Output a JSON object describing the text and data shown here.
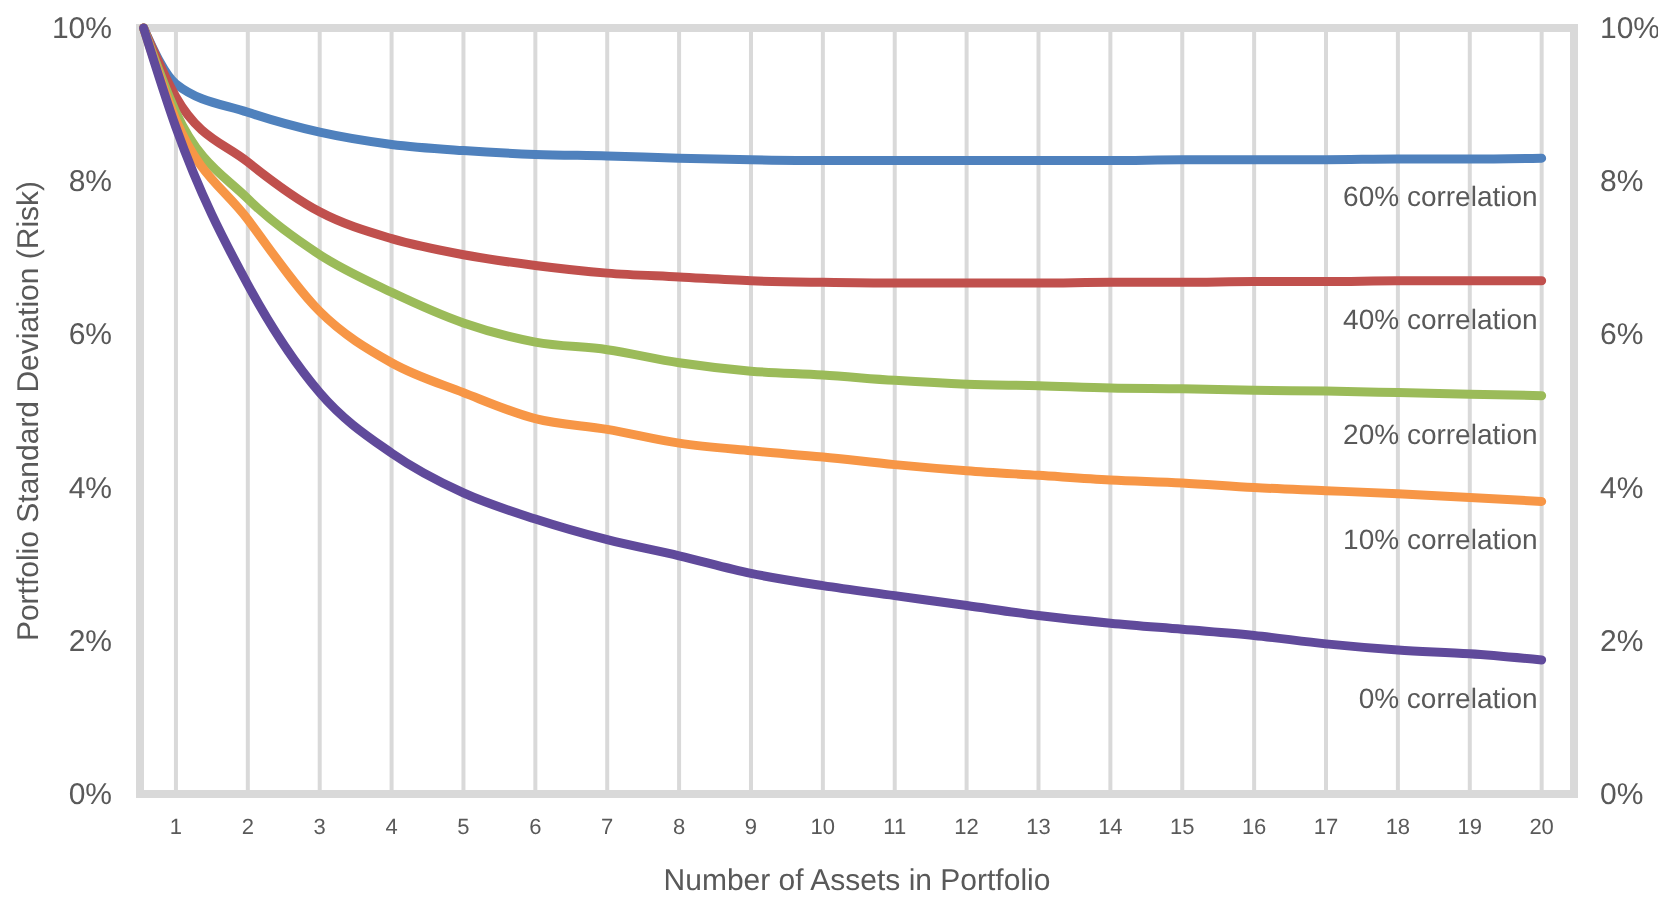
{
  "chart_data": {
    "type": "line",
    "xlabel": "Number of Assets in Portfolio",
    "ylabel": "Portfolio Standard Deviation (Risk)",
    "x": [
      0.55,
      1,
      2,
      3,
      4,
      5,
      6,
      7,
      8,
      9,
      10,
      11,
      12,
      13,
      14,
      15,
      16,
      17,
      18,
      19,
      20
    ],
    "xlim": [
      0.5,
      20.45
    ],
    "xticks": [
      1,
      2,
      3,
      4,
      5,
      6,
      7,
      8,
      9,
      10,
      11,
      12,
      13,
      14,
      15,
      16,
      17,
      18,
      19,
      20
    ],
    "ylim": [
      0,
      10
    ],
    "yticks": [
      {
        "value": 0,
        "label": "0%"
      },
      {
        "value": 2,
        "label": "2%"
      },
      {
        "value": 4,
        "label": "4%"
      },
      {
        "value": 6,
        "label": "6%"
      },
      {
        "value": 8,
        "label": "8%"
      },
      {
        "value": 10,
        "label": "10%"
      }
    ],
    "y2lim": [
      0,
      10
    ],
    "y2ticks": [
      {
        "value": 0,
        "label": "0%"
      },
      {
        "value": 2,
        "label": "2%"
      },
      {
        "value": 4,
        "label": "4%"
      },
      {
        "value": 6,
        "label": "6%"
      },
      {
        "value": 8,
        "label": "8%"
      },
      {
        "value": 10,
        "label": "10%"
      }
    ],
    "grid": "x",
    "legend": false,
    "marker": "none",
    "line_style": "solid",
    "series": [
      {
        "name": "60% correlation",
        "color": "#4f81bd",
        "values": [
          10,
          9.27,
          8.9,
          8.64,
          8.48,
          8.4,
          8.35,
          8.33,
          8.3,
          8.28,
          8.27,
          8.27,
          8.27,
          8.27,
          8.27,
          8.28,
          8.28,
          8.28,
          8.29,
          8.29,
          8.3
        ]
      },
      {
        "name": "40% correlation",
        "color": "#c0504d",
        "values": [
          10,
          9.1,
          8.25,
          7.6,
          7.25,
          7.04,
          6.9,
          6.8,
          6.75,
          6.7,
          6.68,
          6.67,
          6.67,
          6.67,
          6.68,
          6.68,
          6.69,
          6.69,
          6.7,
          6.7,
          6.7
        ]
      },
      {
        "name": "20% correlation",
        "color": "#9bbb59",
        "values": [
          10,
          8.9,
          7.77,
          7.04,
          6.55,
          6.15,
          5.9,
          5.8,
          5.63,
          5.52,
          5.47,
          5.4,
          5.35,
          5.33,
          5.3,
          5.29,
          5.27,
          5.26,
          5.24,
          5.22,
          5.2
        ]
      },
      {
        "name": "10% correlation",
        "color": "#f79646",
        "values": [
          10,
          8.8,
          7.5,
          6.3,
          5.63,
          5.24,
          4.9,
          4.76,
          4.58,
          4.48,
          4.4,
          4.3,
          4.22,
          4.16,
          4.1,
          4.06,
          4.0,
          3.96,
          3.92,
          3.87,
          3.82
        ]
      },
      {
        "name": "0% correlation",
        "color": "#604a9b",
        "values": [
          10,
          8.7,
          6.65,
          5.24,
          4.45,
          3.93,
          3.59,
          3.32,
          3.11,
          2.88,
          2.72,
          2.59,
          2.46,
          2.33,
          2.23,
          2.15,
          2.07,
          1.96,
          1.88,
          1.83,
          1.75
        ]
      }
    ]
  }
}
